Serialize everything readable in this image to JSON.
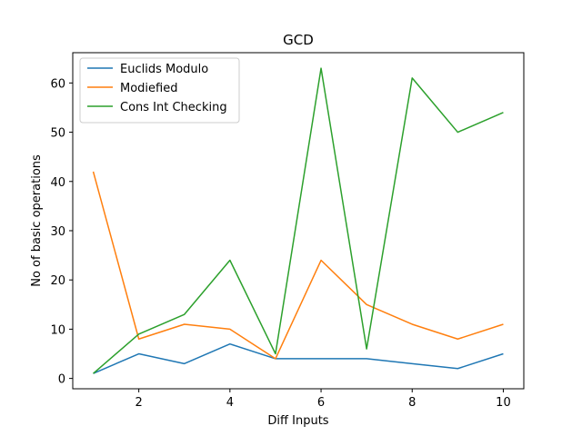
{
  "chart_data": {
    "type": "line",
    "title": "GCD",
    "xlabel": "Diff Inputs",
    "ylabel": "No of basic operations",
    "x": [
      1,
      2,
      3,
      4,
      5,
      6,
      7,
      8,
      9,
      10
    ],
    "xticks": [
      2,
      4,
      6,
      8,
      10
    ],
    "yticks": [
      0,
      10,
      20,
      30,
      40,
      50,
      60
    ],
    "xlim": [
      0.55,
      10.45
    ],
    "ylim": [
      -2.1,
      66.15
    ],
    "grid": false,
    "legend_position": "upper-left",
    "series": [
      {
        "name": "Euclids Modulo",
        "color": "#1f77b4",
        "values": [
          1,
          5,
          3,
          7,
          4,
          4,
          4,
          3,
          2,
          5
        ]
      },
      {
        "name": "Modiefied",
        "color": "#ff7f0e",
        "values": [
          42,
          8,
          11,
          10,
          4,
          24,
          15,
          11,
          8,
          11
        ]
      },
      {
        "name": "Cons Int Checking",
        "color": "#2ca02c",
        "values": [
          1,
          9,
          13,
          24,
          5,
          63,
          6,
          61,
          50,
          54
        ]
      }
    ]
  }
}
